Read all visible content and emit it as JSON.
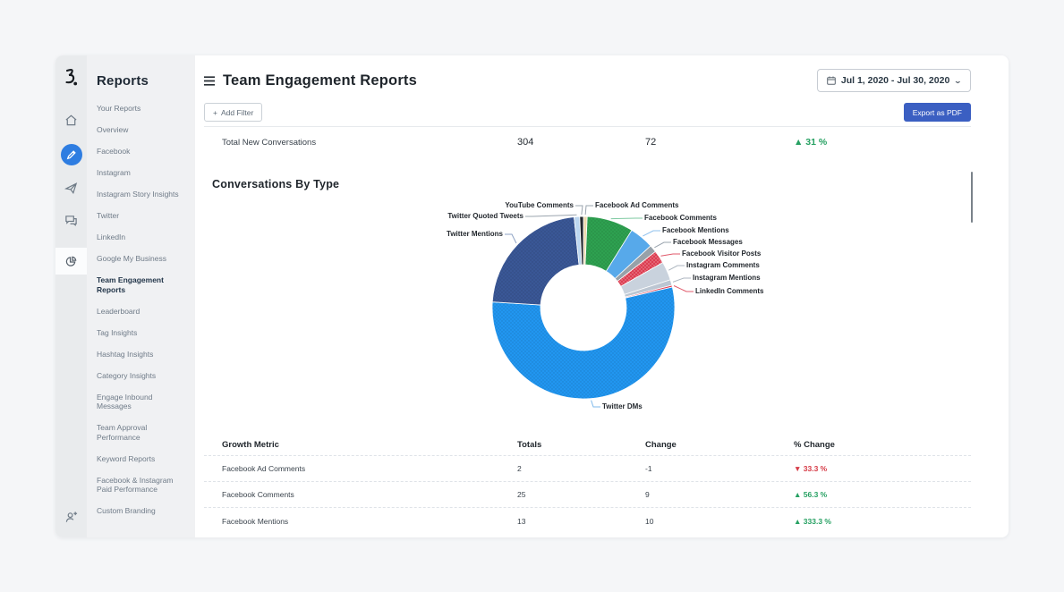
{
  "colors": {
    "accent_blue": "#2E7DE1",
    "export_blue": "#3B5FC2",
    "positive_green": "#27A163",
    "negative_red": "#D63B47"
  },
  "rail": {
    "icons": [
      "home-icon",
      "compose-pencil-icon",
      "paper-plane-icon",
      "messages-icon",
      "pie-chart-icon",
      "add-user-icon"
    ]
  },
  "sidebar": {
    "title": "Reports",
    "active": "Team Engagement Reports",
    "items": [
      "Your Reports",
      "Overview",
      "Facebook",
      "Instagram",
      "Instagram Story Insights",
      "Twitter",
      "LinkedIn",
      "Google My Business",
      "Team Engagement Reports",
      "Leaderboard",
      "Tag Insights",
      "Hashtag Insights",
      "Category Insights",
      "Engage Inbound Messages",
      "Team Approval Performance",
      "Keyword Reports",
      "Facebook & Instagram Paid Performance",
      "Custom Branding"
    ]
  },
  "header": {
    "title": "Team Engagement Reports",
    "date_range": "Jul 1, 2020 - Jul 30, 2020",
    "add_filter": {
      "icon": "+",
      "label": "Add Filter"
    },
    "export_label": "Export as PDF"
  },
  "summary_row": {
    "label": "Total New Conversations",
    "totals": "304",
    "change": "72",
    "pct_display": "▲ 31 %",
    "trend": "up"
  },
  "section": {
    "title": "Conversations By Type"
  },
  "chart_data": {
    "type": "pie",
    "subtype": "donut",
    "title": "Conversations By Type",
    "total": 304,
    "legend_position": "callout-labels",
    "slices": [
      {
        "label": "Facebook Ad Comments",
        "value": 2,
        "color": "#EDD8AC",
        "line": "#9AA4AE"
      },
      {
        "label": "Facebook Comments",
        "value": 25,
        "color": "#2EA150",
        "pattern": "dots",
        "line": "#7CC9A0"
      },
      {
        "label": "Facebook Mentions",
        "value": 13,
        "color": "#57A9EA",
        "line": "#8FC1EE"
      },
      {
        "label": "Facebook Messages",
        "value": 4,
        "color": "#97A1A9",
        "line": "#9AA4AE"
      },
      {
        "label": "Facebook Visitor Posts",
        "value": 7,
        "color": "#DC3D51",
        "pattern": "dots-light",
        "line": "#E05A6B"
      },
      {
        "label": "Instagram Comments",
        "value": 10,
        "color": "#C9D2DD",
        "line": "#ADB6C0"
      },
      {
        "label": "Instagram Mentions",
        "value": 3,
        "color": "#BCC6D2",
        "line": "#ADB6C0"
      },
      {
        "label": "LinkedIn Comments",
        "value": 1,
        "color": "#E23A4F",
        "line": "#E05A6B"
      },
      {
        "label": "Twitter DMs",
        "value": 166,
        "color": "#2196F0",
        "pattern": "dots",
        "line": "#7FB9EA"
      },
      {
        "label": "Twitter Mentions",
        "value": 68,
        "color": "#3A5796",
        "pattern": "dots",
        "line": "#8FA3C4"
      },
      {
        "label": "Twitter Quoted Tweets",
        "value": 3,
        "color": "#BDD7F0",
        "line": "#9AA4AE"
      },
      {
        "label": "YouTube Comments",
        "value": 2,
        "color": "#23272E",
        "line": "#9AA4AE"
      }
    ]
  },
  "growth_table": {
    "headers": [
      "Growth Metric",
      "Totals",
      "Change",
      "% Change"
    ],
    "rows": [
      {
        "metric": "Facebook Ad Comments",
        "totals": "2",
        "change": "-1",
        "pct_display": "▼ 33.3 %",
        "trend": "down"
      },
      {
        "metric": "Facebook Comments",
        "totals": "25",
        "change": "9",
        "pct_display": "▲ 56.3 %",
        "trend": "up"
      },
      {
        "metric": "Facebook Mentions",
        "totals": "13",
        "change": "10",
        "pct_display": "▲ 333.3 %",
        "trend": "up"
      }
    ]
  }
}
